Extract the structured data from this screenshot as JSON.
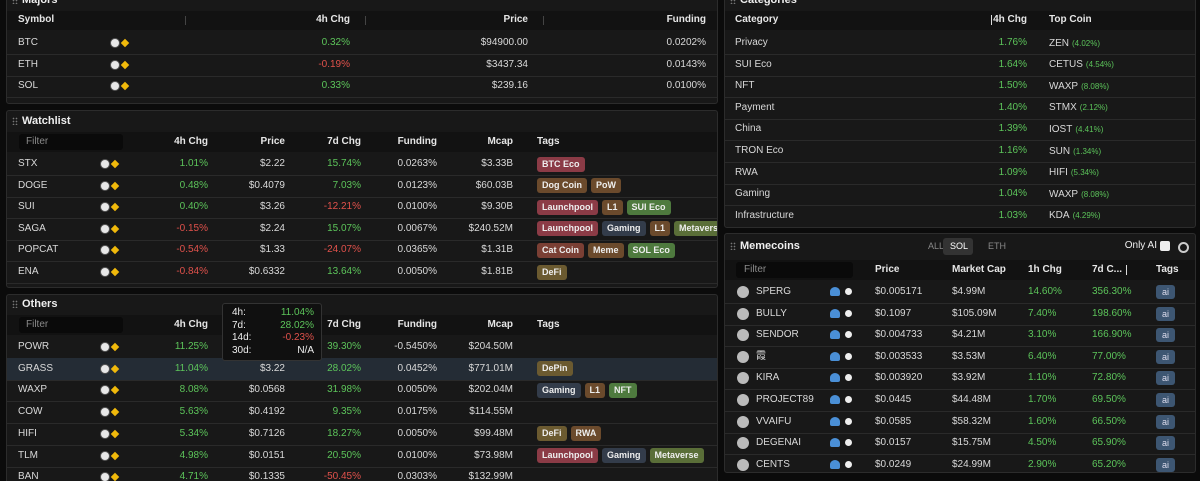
{
  "majors": {
    "title": "Majors",
    "columns": [
      "Symbol",
      "4h Chg",
      "Price",
      "Funding"
    ],
    "rows": [
      [
        "BTC",
        "0.32%",
        "$94900.00",
        "0.0202%"
      ],
      [
        "ETH",
        "-0.19%",
        "$3437.34",
        "0.0143%"
      ],
      [
        "SOL",
        "0.33%",
        "$239.16",
        "0.0100%"
      ]
    ]
  },
  "watchlist": {
    "title": "Watchlist",
    "filter_placeholder": "Filter",
    "columns": [
      "4h Chg",
      "Price",
      "7d Chg",
      "Funding",
      "Mcap",
      "Tags"
    ],
    "rows": [
      {
        "symbol": "STX",
        "cells": [
          "1.01%",
          "$2.22",
          "15.74%",
          "0.0263%",
          "$3.33B"
        ],
        "tags": [
          {
            "label": "BTC Eco",
            "color": "#8b3b46"
          }
        ]
      },
      {
        "symbol": "DOGE",
        "cells": [
          "0.48%",
          "$0.4079",
          "7.03%",
          "0.0123%",
          "$60.03B"
        ],
        "tags": [
          {
            "label": "Dog Coin",
            "color": "#6b4a2c"
          },
          {
            "label": "PoW",
            "color": "#6b4a2c"
          }
        ]
      },
      {
        "symbol": "SUI",
        "cells": [
          "0.40%",
          "$3.26",
          "-12.21%",
          "0.0100%",
          "$9.30B"
        ],
        "tags": [
          {
            "label": "Launchpool",
            "color": "#8b3b46"
          },
          {
            "label": "L1",
            "color": "#6b4a2c"
          },
          {
            "label": "SUI Eco",
            "color": "#4e7a3e"
          }
        ]
      },
      {
        "symbol": "SAGA",
        "cells": [
          "-0.15%",
          "$2.24",
          "15.07%",
          "0.0067%",
          "$240.52M"
        ],
        "tags": [
          {
            "label": "Launchpool",
            "color": "#8b3b46"
          },
          {
            "label": "Gaming",
            "color": "#333c4a"
          },
          {
            "label": "L1",
            "color": "#6b4a2c"
          },
          {
            "label": "Metaverse",
            "color": "#5a6e38"
          }
        ]
      },
      {
        "symbol": "POPCAT",
        "cells": [
          "-0.54%",
          "$1.33",
          "-24.07%",
          "0.0365%",
          "$1.31B"
        ],
        "tags": [
          {
            "label": "Cat Coin",
            "color": "#7a3f34"
          },
          {
            "label": "Meme",
            "color": "#6b4a2c"
          },
          {
            "label": "SOL Eco",
            "color": "#4e7a3e"
          }
        ]
      },
      {
        "symbol": "ENA",
        "cells": [
          "-0.84%",
          "$0.6332",
          "13.64%",
          "0.0050%",
          "$1.81B"
        ],
        "tags": [
          {
            "label": "DeFi",
            "color": "#6b5a30"
          }
        ]
      }
    ]
  },
  "others": {
    "title": "Others",
    "filter_placeholder": "Filter",
    "columns": [
      "4h Chg",
      "Price",
      "7d Chg",
      "Funding",
      "Mcap",
      "Tags"
    ],
    "rows": [
      {
        "symbol": "POWR",
        "cells": [
          "11.25%",
          null,
          "39.30%",
          "-0.5450%",
          "$204.50M"
        ]
      },
      {
        "symbol": "GRASS",
        "cells": [
          "11.04%",
          "$3.22",
          "28.02%",
          "0.0452%",
          "$771.01M"
        ],
        "tags": [
          {
            "label": "DePin",
            "color": "#6b5a30"
          }
        ]
      },
      {
        "symbol": "WAXP",
        "cells": [
          "8.08%",
          "$0.0568",
          "31.98%",
          "0.0050%",
          "$202.04M"
        ],
        "tags": [
          {
            "label": "Gaming",
            "color": "#333c4a"
          },
          {
            "label": "L1",
            "color": "#6b4a2c"
          },
          {
            "label": "NFT",
            "color": "#4e7a3e"
          }
        ]
      },
      {
        "symbol": "COW",
        "cells": [
          "5.63%",
          "$0.4192",
          "9.35%",
          "0.0175%",
          "$114.55M"
        ]
      },
      {
        "symbol": "HIFI",
        "cells": [
          "5.34%",
          "$0.7126",
          "18.27%",
          "0.0050%",
          "$99.48M"
        ],
        "tags": [
          {
            "label": "DeFi",
            "color": "#6b5a30"
          },
          {
            "label": "RWA",
            "color": "#6b4a2c"
          }
        ]
      },
      {
        "symbol": "TLM",
        "cells": [
          "4.98%",
          "$0.0151",
          "20.50%",
          "0.0100%",
          "$73.98M"
        ],
        "tags": [
          {
            "label": "Launchpool",
            "color": "#8b3b46"
          },
          {
            "label": "Gaming",
            "color": "#333c4a"
          },
          {
            "label": "Metaverse",
            "color": "#5a6e38"
          }
        ]
      },
      {
        "symbol": "BAN",
        "cells": [
          "4.71%",
          "$0.1335",
          "-50.45%",
          "0.0303%",
          "$132.99M"
        ]
      }
    ],
    "tooltip": {
      "rows": [
        {
          "label": "4h:",
          "value": "11.04%"
        },
        {
          "label": "7d:",
          "value": "28.02%"
        },
        {
          "label": "14d:",
          "value": "-0.23%"
        },
        {
          "label": "30d:",
          "value": "N/A"
        }
      ]
    }
  },
  "categories": {
    "title": "Categories",
    "columns": [
      "Category",
      "4h Chg",
      "Top Coin"
    ],
    "rows": [
      {
        "name": "Privacy",
        "chg": "1.76%",
        "coin": "ZEN",
        "coin_chg": "(4.02%)"
      },
      {
        "name": "SUI Eco",
        "chg": "1.64%",
        "coin": "CETUS",
        "coin_chg": "(4.54%)"
      },
      {
        "name": "NFT",
        "chg": "1.50%",
        "coin": "WAXP",
        "coin_chg": "(8.08%)"
      },
      {
        "name": "Payment",
        "chg": "1.40%",
        "coin": "STMX",
        "coin_chg": "(2.12%)"
      },
      {
        "name": "China",
        "chg": "1.39%",
        "coin": "IOST",
        "coin_chg": "(4.41%)"
      },
      {
        "name": "TRON Eco",
        "chg": "1.16%",
        "coin": "SUN",
        "coin_chg": "(1.34%)"
      },
      {
        "name": "RWA",
        "chg": "1.09%",
        "coin": "HIFI",
        "coin_chg": "(5.34%)"
      },
      {
        "name": "Gaming",
        "chg": "1.04%",
        "coin": "WAXP",
        "coin_chg": "(8.08%)"
      },
      {
        "name": "Infrastructure",
        "chg": "1.03%",
        "coin": "KDA",
        "coin_chg": "(4.29%)"
      }
    ]
  },
  "memecoins": {
    "title": "Memecoins",
    "tabs": [
      "ALL",
      "SOL",
      "ETH"
    ],
    "active_tab": 1,
    "only_ai_label": "Only AI",
    "filter_placeholder": "Filter",
    "columns": [
      "Price",
      "Market Cap",
      "1h Chg",
      "7d C...",
      "Tags"
    ],
    "rows": [
      {
        "name": "SPERG",
        "cells": [
          "$0.005171",
          "$4.99M",
          "14.60%",
          "356.30%"
        ],
        "tags": [
          "ai"
        ]
      },
      {
        "name": "BULLY",
        "cells": [
          "$0.1097",
          "$105.09M",
          "7.40%",
          "198.60%"
        ],
        "tags": [
          "ai"
        ]
      },
      {
        "name": "SENDOR",
        "cells": [
          "$0.004733",
          "$4.21M",
          "3.10%",
          "166.90%"
        ],
        "tags": [
          "ai"
        ]
      },
      {
        "name": "霞",
        "cells": [
          "$0.003533",
          "$3.53M",
          "6.40%",
          "77.00%"
        ],
        "tags": [
          "ai"
        ]
      },
      {
        "name": "KIRA",
        "cells": [
          "$0.003920",
          "$3.92M",
          "1.10%",
          "72.80%"
        ],
        "tags": [
          "ai"
        ]
      },
      {
        "name": "PROJECT89",
        "cells": [
          "$0.0445",
          "$44.48M",
          "1.70%",
          "69.50%"
        ],
        "tags": [
          "ai"
        ]
      },
      {
        "name": "VVAIFU",
        "cells": [
          "$0.0585",
          "$58.32M",
          "1.60%",
          "66.50%"
        ],
        "tags": [
          "ai"
        ]
      },
      {
        "name": "DEGENAI",
        "cells": [
          "$0.0157",
          "$15.75M",
          "4.50%",
          "65.90%"
        ],
        "tags": [
          "ai"
        ]
      },
      {
        "name": "CENTS",
        "cells": [
          "$0.0249",
          "$24.99M",
          "2.90%",
          "65.20%"
        ],
        "tags": [
          "ai"
        ]
      }
    ]
  }
}
